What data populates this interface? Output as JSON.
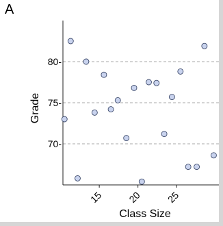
{
  "panel_label": "A",
  "chart_data": {
    "type": "scatter",
    "title": "",
    "xlabel": "Class Size",
    "ylabel": "Grade",
    "xlim": [
      10.3,
      31.0
    ],
    "ylim": [
      65.0,
      85.0
    ],
    "xticks": [
      15,
      20,
      25
    ],
    "xtick_labels": [
      "15",
      "20",
      "25"
    ],
    "yticks": [
      70,
      75,
      80
    ],
    "ytick_labels": [
      "70-",
      "75-",
      "80-"
    ],
    "grid": "horizontal-dashed",
    "points": [
      {
        "x": 10.5,
        "y": 73.0
      },
      {
        "x": 11.3,
        "y": 82.5
      },
      {
        "x": 12.2,
        "y": 65.8
      },
      {
        "x": 13.3,
        "y": 80.0
      },
      {
        "x": 14.4,
        "y": 73.8
      },
      {
        "x": 15.6,
        "y": 78.4
      },
      {
        "x": 16.5,
        "y": 74.2
      },
      {
        "x": 17.4,
        "y": 75.3
      },
      {
        "x": 18.5,
        "y": 70.7
      },
      {
        "x": 19.5,
        "y": 76.8
      },
      {
        "x": 20.5,
        "y": 65.4
      },
      {
        "x": 21.4,
        "y": 77.5
      },
      {
        "x": 22.4,
        "y": 77.4
      },
      {
        "x": 23.4,
        "y": 71.2
      },
      {
        "x": 24.4,
        "y": 75.7
      },
      {
        "x": 25.5,
        "y": 78.8
      },
      {
        "x": 26.5,
        "y": 67.2
      },
      {
        "x": 27.6,
        "y": 67.2
      },
      {
        "x": 28.6,
        "y": 81.9
      },
      {
        "x": 29.8,
        "y": 68.6
      }
    ],
    "colors": {
      "marker_fill": "#c9d3ee",
      "marker_stroke": "#3d4a6b",
      "grid": "#a8a8a8",
      "axis": "#222222"
    }
  }
}
